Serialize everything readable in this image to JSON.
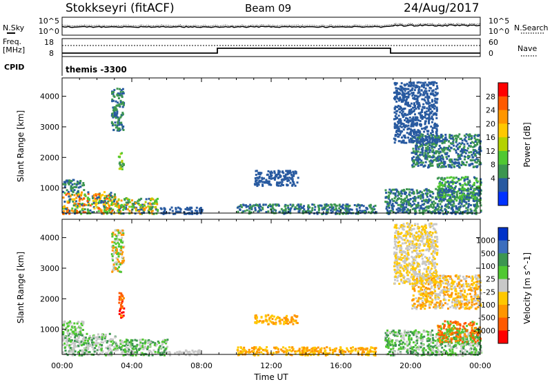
{
  "header": {
    "station": "Stokkseyri (fitACF)",
    "beam": "Beam 09",
    "date": "24/Aug/2017"
  },
  "top_panels": {
    "nsky_label": "N.Sky",
    "nsearch_label": "N.Search",
    "freq_label_1": "Freq.",
    "freq_label_2": "[MHz]",
    "nave_label": "Nave",
    "cpid_label": "CPID",
    "cpid_value": "themis -3300",
    "noise_ticks": [
      "10^5",
      "10^0"
    ],
    "freq_ticks": [
      "18",
      "8"
    ],
    "nave_ticks": [
      "60",
      "0"
    ]
  },
  "chart_data": [
    {
      "type": "heatmap",
      "title": "",
      "xlabel": "",
      "ylabel": "Slant Range [km]",
      "colorbar_label": "Power [dB]",
      "colorbar_ticks": [
        "28",
        "24",
        "20",
        "16",
        "12",
        "8",
        "4"
      ],
      "colorbar_colors": [
        "#ff0000",
        "#ff5a00",
        "#ff9600",
        "#ffc800",
        "#b4d200",
        "#50c832",
        "#3c9650",
        "#285aa0",
        "#0032ff"
      ],
      "yticks": [
        "1000",
        "2000",
        "3000",
        "4000"
      ],
      "ylim": [
        180,
        4600
      ],
      "xlim": [
        "00:00",
        "24:00"
      ],
      "blobs": [
        {
          "t0": 0.0,
          "t1": 3.0,
          "r0": 180,
          "r1": 900,
          "colors": [
            "#ff5a00",
            "#ff9600",
            "#ffc800",
            "#50c832",
            "#3c9650",
            "#285aa0"
          ]
        },
        {
          "t0": 3.0,
          "t1": 5.5,
          "r0": 180,
          "r1": 700,
          "colors": [
            "#ff9600",
            "#b4d200",
            "#50c832",
            "#3c9650",
            "#285aa0"
          ]
        },
        {
          "t0": 0.0,
          "t1": 1.2,
          "r0": 900,
          "r1": 1300,
          "colors": [
            "#285aa0",
            "#3c9650"
          ]
        },
        {
          "t0": 3.2,
          "t1": 3.5,
          "r0": 1600,
          "r1": 2200,
          "colors": [
            "#b4d200",
            "#50c832",
            "#3c9650"
          ]
        },
        {
          "t0": 5.5,
          "t1": 8.0,
          "r0": 180,
          "r1": 400,
          "colors": [
            "#285aa0"
          ]
        },
        {
          "t0": 11.0,
          "t1": 13.5,
          "r0": 1100,
          "r1": 1600,
          "colors": [
            "#285aa0"
          ]
        },
        {
          "t0": 10.0,
          "t1": 18.0,
          "r0": 180,
          "r1": 500,
          "colors": [
            "#285aa0",
            "#3c9650"
          ]
        },
        {
          "t0": 18.5,
          "t1": 24.0,
          "r0": 180,
          "r1": 1000,
          "colors": [
            "#285aa0",
            "#3c9650"
          ]
        },
        {
          "t0": 21.5,
          "t1": 24.0,
          "r0": 600,
          "r1": 1400,
          "colors": [
            "#50c832",
            "#3c9650",
            "#285aa0"
          ]
        },
        {
          "t0": 20.0,
          "t1": 24.0,
          "r0": 1700,
          "r1": 2800,
          "colors": [
            "#285aa0",
            "#3c9650"
          ]
        },
        {
          "t0": 19.0,
          "t1": 21.5,
          "r0": 2500,
          "r1": 4500,
          "colors": [
            "#285aa0"
          ]
        },
        {
          "t0": 2.8,
          "t1": 3.5,
          "r0": 2900,
          "r1": 4300,
          "colors": [
            "#285aa0",
            "#3c9650"
          ]
        }
      ]
    },
    {
      "type": "heatmap",
      "title": "",
      "xlabel": "Time UT",
      "ylabel": "Slant Range [km]",
      "colorbar_label": "Velocity [m s^-1]",
      "colorbar_ticks": [
        "1000",
        "500",
        "100",
        "25",
        "-25",
        "-100",
        "-500",
        "-1000"
      ],
      "colorbar_colors": [
        "#0032c8",
        "#3c6ebe",
        "#3c9650",
        "#50c832",
        "#c8c8c8",
        "#ffc800",
        "#ff9600",
        "#ff5a00",
        "#ff0000"
      ],
      "yticks": [
        "1000",
        "2000",
        "3000",
        "4000"
      ],
      "ylim": [
        180,
        4600
      ],
      "xlim": [
        "00:00",
        "24:00"
      ],
      "xticks": [
        "00:00",
        "04:00",
        "08:00",
        "12:00",
        "16:00",
        "20:00",
        "00:00"
      ],
      "blobs": [
        {
          "t0": 0.0,
          "t1": 3.0,
          "r0": 180,
          "r1": 900,
          "colors": [
            "#c8c8c8",
            "#c8c8c8",
            "#50c832",
            "#3c9650"
          ]
        },
        {
          "t0": 3.0,
          "t1": 6.0,
          "r0": 180,
          "r1": 700,
          "colors": [
            "#c8c8c8",
            "#50c832",
            "#3c9650"
          ]
        },
        {
          "t0": 0.0,
          "t1": 1.2,
          "r0": 900,
          "r1": 1300,
          "colors": [
            "#c8c8c8",
            "#50c832"
          ]
        },
        {
          "t0": 3.2,
          "t1": 3.5,
          "r0": 1400,
          "r1": 2300,
          "colors": [
            "#ff5a00",
            "#ff0000",
            "#ff9600"
          ]
        },
        {
          "t0": 6.0,
          "t1": 8.0,
          "r0": 180,
          "r1": 350,
          "colors": [
            "#c8c8c8"
          ]
        },
        {
          "t0": 11.0,
          "t1": 13.5,
          "r0": 1200,
          "r1": 1500,
          "colors": [
            "#ff9600",
            "#ffc800"
          ]
        },
        {
          "t0": 10.0,
          "t1": 18.0,
          "r0": 180,
          "r1": 450,
          "colors": [
            "#ffc800",
            "#ff9600"
          ]
        },
        {
          "t0": 18.5,
          "t1": 24.0,
          "r0": 180,
          "r1": 1000,
          "colors": [
            "#50c832",
            "#3c9650",
            "#c8c8c8"
          ]
        },
        {
          "t0": 21.5,
          "t1": 24.0,
          "r0": 600,
          "r1": 1300,
          "colors": [
            "#ff9600",
            "#ff5a00",
            "#50c832"
          ]
        },
        {
          "t0": 20.0,
          "t1": 24.0,
          "r0": 1700,
          "r1": 2800,
          "colors": [
            "#c8c8c8",
            "#ffc800",
            "#ff9600"
          ]
        },
        {
          "t0": 19.0,
          "t1": 21.5,
          "r0": 2500,
          "r1": 4500,
          "colors": [
            "#c8c8c8",
            "#ffc800"
          ]
        },
        {
          "t0": 2.8,
          "t1": 3.5,
          "r0": 2900,
          "r1": 4300,
          "colors": [
            "#c8c8c8",
            "#50c832",
            "#ff9600"
          ]
        }
      ]
    }
  ]
}
